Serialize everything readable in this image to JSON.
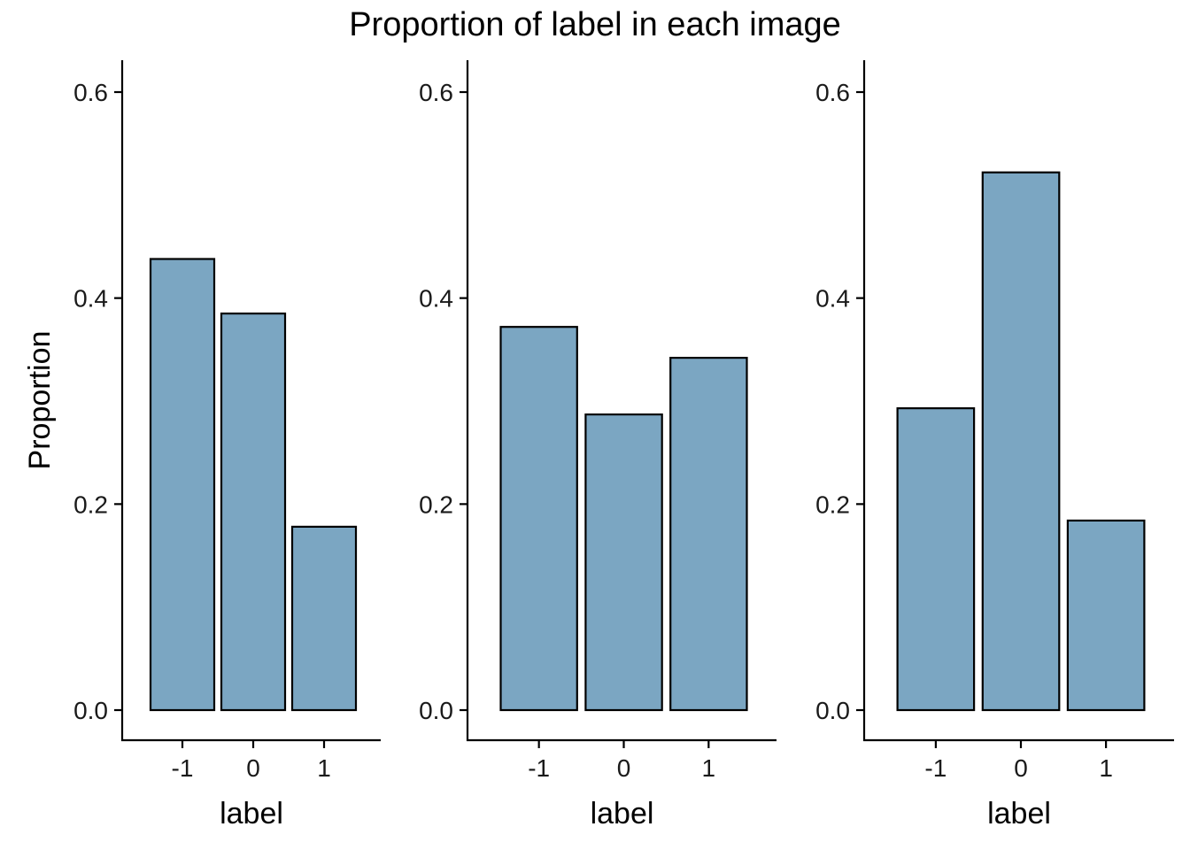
{
  "title": "Proportion of label in each image",
  "bar_color": "#7BA6C2",
  "chart_data": [
    {
      "type": "bar",
      "categories": [
        "-1",
        "0",
        "1"
      ],
      "values": [
        0.438,
        0.385,
        0.178
      ],
      "xlabel": "label",
      "ylabel": "Proportion",
      "ylim": [
        0,
        0.6
      ],
      "yticks": [
        "0.0",
        "0.2",
        "0.4",
        "0.6"
      ],
      "grid": false
    },
    {
      "type": "bar",
      "categories": [
        "-1",
        "0",
        "1"
      ],
      "values": [
        0.372,
        0.287,
        0.342
      ],
      "xlabel": "label",
      "ylabel": "",
      "ylim": [
        0,
        0.6
      ],
      "yticks": [
        "0.0",
        "0.2",
        "0.4",
        "0.6"
      ],
      "grid": false
    },
    {
      "type": "bar",
      "categories": [
        "-1",
        "0",
        "1"
      ],
      "values": [
        0.293,
        0.522,
        0.184
      ],
      "xlabel": "label",
      "ylabel": "",
      "ylim": [
        0,
        0.6
      ],
      "yticks": [
        "0.0",
        "0.2",
        "0.4",
        "0.6"
      ],
      "grid": false
    }
  ]
}
